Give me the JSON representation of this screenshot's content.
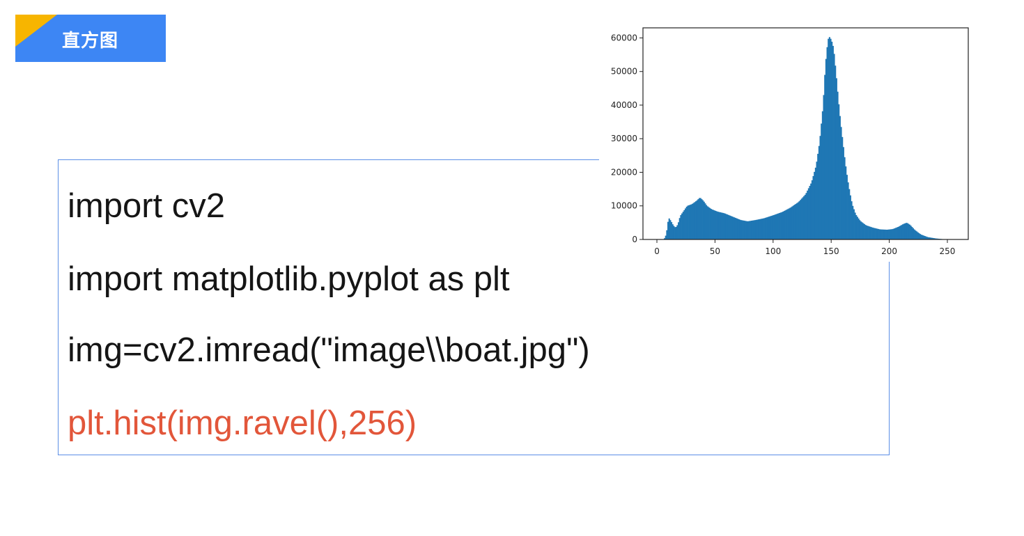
{
  "header": {
    "title": "直方图",
    "accent_color": "#3d86f4",
    "corner_color": "#f7b500"
  },
  "code": {
    "lines": [
      {
        "text": "import cv2",
        "highlight": false
      },
      {
        "text": "import matplotlib.pyplot as plt",
        "highlight": false
      },
      {
        "text": "img=cv2.imread(\"image\\\\boat.jpg\")",
        "highlight": false
      },
      {
        "text": "plt.hist(img.ravel(),256)",
        "highlight": true
      }
    ],
    "highlight_color": "#e2563a",
    "border_color": "#5b8ee6"
  },
  "chart_data": {
    "type": "bar",
    "title": "",
    "xlabel": "",
    "ylabel": "",
    "xlim": [
      -12,
      268
    ],
    "ylim": [
      0,
      63000
    ],
    "x_ticks": [
      "0",
      "50",
      "100",
      "150",
      "200",
      "250"
    ],
    "y_ticks": [
      "0",
      "10000",
      "20000",
      "30000",
      "40000",
      "50000",
      "60000"
    ],
    "bar_color": "#1f77b4",
    "grid": false,
    "profile": [
      [
        0,
        0
      ],
      [
        6,
        0
      ],
      [
        8,
        1500
      ],
      [
        10,
        6500
      ],
      [
        12,
        5500
      ],
      [
        14,
        4200
      ],
      [
        16,
        3500
      ],
      [
        18,
        4500
      ],
      [
        20,
        7000
      ],
      [
        23,
        8500
      ],
      [
        26,
        10000
      ],
      [
        30,
        10500
      ],
      [
        34,
        11500
      ],
      [
        37,
        12500
      ],
      [
        40,
        11500
      ],
      [
        43,
        10000
      ],
      [
        47,
        9000
      ],
      [
        52,
        8300
      ],
      [
        58,
        7800
      ],
      [
        65,
        6800
      ],
      [
        72,
        5800
      ],
      [
        78,
        5400
      ],
      [
        85,
        5800
      ],
      [
        92,
        6300
      ],
      [
        100,
        7200
      ],
      [
        108,
        8200
      ],
      [
        115,
        9500
      ],
      [
        122,
        11200
      ],
      [
        128,
        13500
      ],
      [
        133,
        17000
      ],
      [
        137,
        22000
      ],
      [
        140,
        29000
      ],
      [
        143,
        40000
      ],
      [
        145,
        52000
      ],
      [
        147,
        59000
      ],
      [
        148,
        60500
      ],
      [
        150,
        59500
      ],
      [
        152,
        57000
      ],
      [
        154,
        50000
      ],
      [
        156,
        42000
      ],
      [
        158,
        35000
      ],
      [
        160,
        29000
      ],
      [
        162,
        23000
      ],
      [
        164,
        18000
      ],
      [
        166,
        14000
      ],
      [
        168,
        10500
      ],
      [
        171,
        7500
      ],
      [
        175,
        5500
      ],
      [
        180,
        4200
      ],
      [
        186,
        3500
      ],
      [
        192,
        3000
      ],
      [
        198,
        2900
      ],
      [
        203,
        3100
      ],
      [
        208,
        3800
      ],
      [
        212,
        4600
      ],
      [
        215,
        5000
      ],
      [
        218,
        4300
      ],
      [
        222,
        2800
      ],
      [
        227,
        1500
      ],
      [
        233,
        700
      ],
      [
        240,
        300
      ],
      [
        246,
        100
      ],
      [
        250,
        0
      ],
      [
        255,
        0
      ]
    ]
  }
}
